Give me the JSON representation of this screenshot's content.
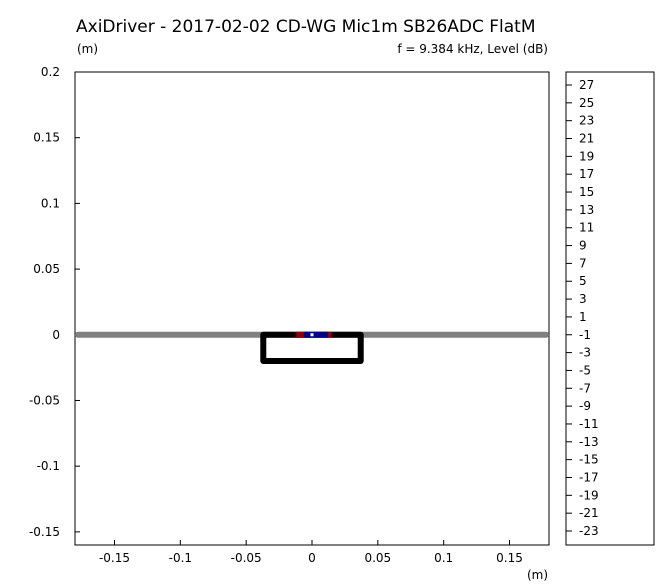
{
  "title": "AxiDriver - 2017-02-02 CD-WG Mic1m SB26ADC FlatM",
  "ylabel": "(m)",
  "subtitle": "f = 9.384 kHz, Level  (dB)",
  "xlabel": "(m)",
  "chart_data": {
    "type": "heatmap",
    "title": "AxiDriver - 2017-02-02 CD-WG Mic1m SB26ADC FlatM",
    "subtitle": "f = 9.384 kHz, Level  (dB)",
    "xlabel": "(m)",
    "ylabel": "(m)",
    "xlim": [
      -0.18,
      0.18
    ],
    "ylim": [
      -0.16,
      0.2
    ],
    "x_ticks": [
      -0.15,
      -0.1,
      -0.05,
      0,
      0.05,
      0.1,
      0.15
    ],
    "x_tick_labels": [
      "-0.15",
      "-0.1",
      "-0.05",
      "0",
      "0.05",
      "0.1",
      "0.15"
    ],
    "y_ticks": [
      0.2,
      0.15,
      0.1,
      0.05,
      0,
      -0.05,
      -0.1,
      -0.15
    ],
    "y_tick_labels": [
      "0.2",
      "0.15",
      "0.1",
      "0.05",
      "0",
      "-0.05",
      "-0.1",
      "-0.15"
    ],
    "colorbar_levels": [
      "27",
      "25",
      "23",
      "21",
      "19",
      "17",
      "15",
      "13",
      "11",
      "9",
      "7",
      "5",
      "3",
      "1",
      "-1",
      "-3",
      "-5",
      "-7",
      "-9",
      "-11",
      "-13",
      "-15",
      "-17",
      "-19",
      "-21",
      "-23"
    ],
    "baffle_line": {
      "x": [
        -0.18,
        0.18
      ],
      "y": 0,
      "color": "#808080"
    },
    "enclosure_outline": {
      "x": [
        -0.037,
        0.037
      ],
      "y": [
        -0.02,
        0
      ],
      "color": "#000000"
    },
    "source_segments": [
      {
        "x": [
          -0.012,
          -0.006
        ],
        "y": 0,
        "color": "#8b0000"
      },
      {
        "x": [
          -0.006,
          0.012
        ],
        "y": 0,
        "color": "#00008b"
      },
      {
        "x": [
          0.012,
          0.015
        ],
        "y": 0,
        "color": "#8b0000"
      }
    ],
    "center_marker": {
      "x": 0,
      "y": 0,
      "color": "#ffffff"
    },
    "grid": false
  }
}
